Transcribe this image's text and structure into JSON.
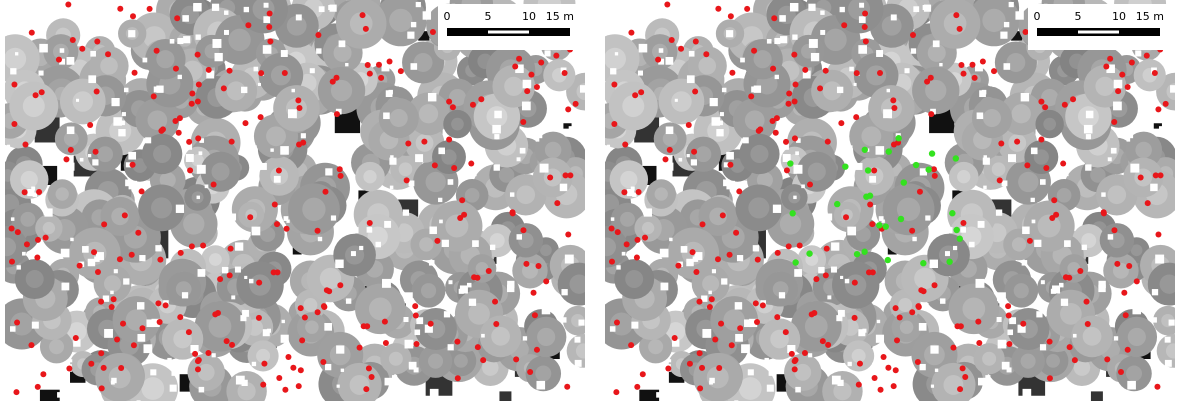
{
  "panels": [
    {
      "scale_labels": [
        "0",
        "5",
        "10",
        "15 m"
      ]
    },
    {
      "scale_labels": [
        "0",
        "5",
        "10",
        "15 m"
      ]
    }
  ]
}
